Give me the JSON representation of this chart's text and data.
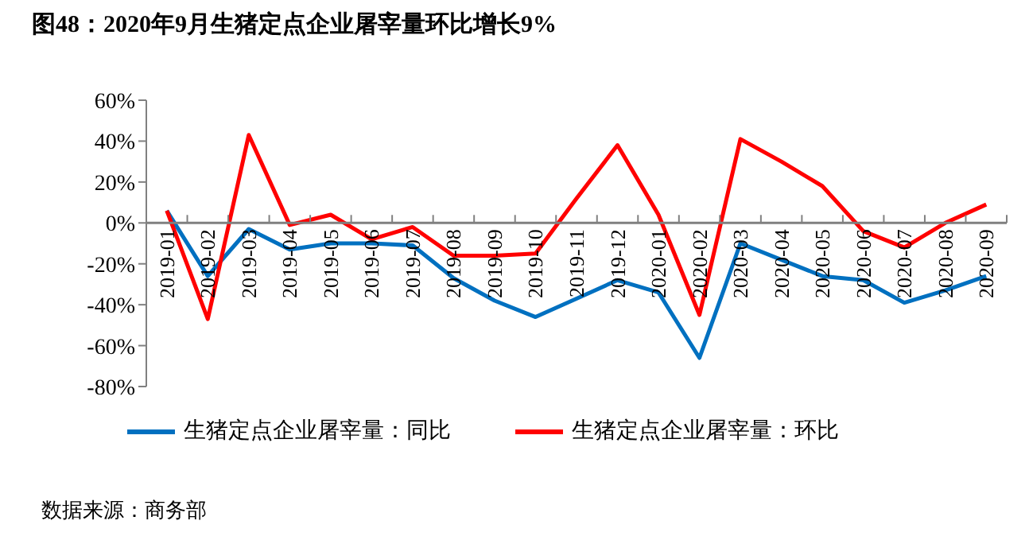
{
  "chart_data": {
    "type": "line",
    "title": "图48：2020年9月生猪定点企业屠宰量环比增长9%",
    "categories": [
      "2019-01",
      "2019-02",
      "2019-03",
      "2019-04",
      "2019-05",
      "2019-06",
      "2019-07",
      "2019-08",
      "2019-09",
      "2019-10",
      "2019-11",
      "2019-12",
      "2020-01",
      "2020-02",
      "2020-03",
      "2020-04",
      "2020-05",
      "2020-06",
      "2020-07",
      "2020-08",
      "2020-09"
    ],
    "series": [
      {
        "name": "生猪定点企业屠宰量：同比",
        "color": "#0070c0",
        "values": [
          6,
          -26,
          -3,
          -13,
          -10,
          -10,
          -11,
          -27,
          -38,
          -46,
          -37,
          -28,
          -34,
          -66,
          -10,
          -18,
          -26,
          -28,
          -39,
          -33,
          -26
        ]
      },
      {
        "name": "生猪定点企业屠宰量：环比",
        "color": "#ff0000",
        "values": [
          6,
          -47,
          43,
          -1,
          4,
          -8,
          -2,
          -16,
          -16,
          -15,
          12,
          38,
          4,
          -45,
          41,
          30,
          18,
          -4,
          -12,
          0,
          9
        ]
      }
    ],
    "ylim": [
      -80,
      60
    ],
    "yticks": [
      {
        "value": -80,
        "label": "-80%"
      },
      {
        "value": -60,
        "label": "-60%"
      },
      {
        "value": -40,
        "label": "-40%"
      },
      {
        "value": -20,
        "label": "-20%"
      },
      {
        "value": 0,
        "label": "0%"
      },
      {
        "value": 20,
        "label": "20%"
      },
      {
        "value": 40,
        "label": "40%"
      },
      {
        "value": 60,
        "label": "60%"
      }
    ],
    "grid": false,
    "legend": "bottom",
    "marker": "none",
    "line_style": "solid",
    "annotations": [
      "数据来源：商务部"
    ]
  }
}
